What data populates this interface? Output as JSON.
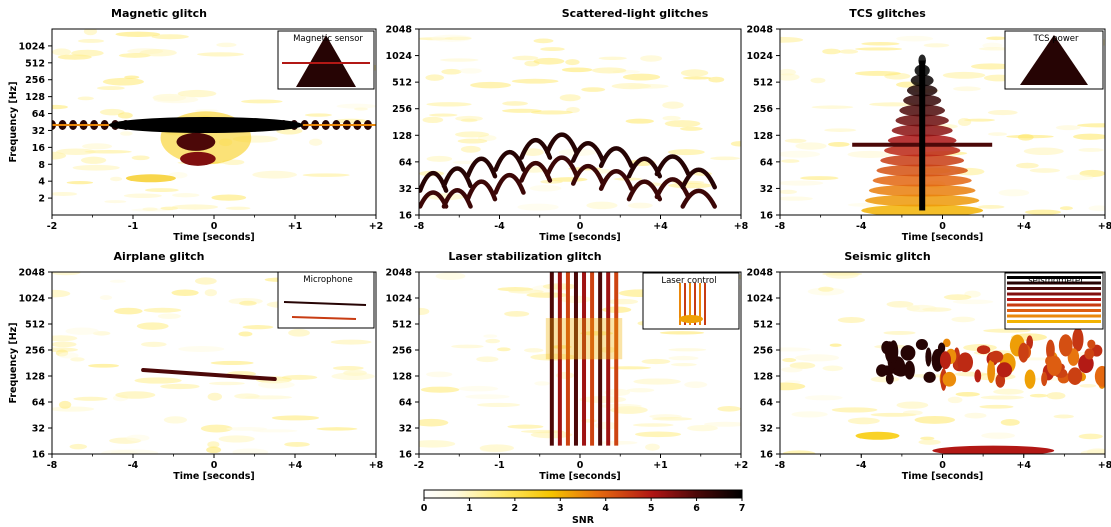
{
  "colorbar": {
    "label": "SNR",
    "ticks": [
      "0",
      "1",
      "2",
      "3",
      "4",
      "5",
      "6",
      "7"
    ],
    "range": [
      0,
      7
    ]
  },
  "chart_data": [
    {
      "type": "heatmap",
      "title": "Magnetic glitch",
      "xlabel": "Time [seconds]",
      "ylabel": "Frequency [Hz]",
      "xlim": [
        -2,
        2
      ],
      "ylim": [
        1,
        2048
      ],
      "yscale": "log",
      "xticks": [
        "-2",
        "-1",
        "0",
        "+1",
        "+2"
      ],
      "yticks": [
        "2",
        "4",
        "8",
        "16",
        "32",
        "64",
        "128",
        "256",
        "512",
        "1024"
      ],
      "inset": "Magnetic sensor",
      "features": [
        {
          "kind": "comb",
          "freq_hz": 40,
          "t_start": -2.0,
          "t_end": 2.0,
          "spacing": 0.13,
          "snr": 6.5
        },
        {
          "kind": "burst",
          "t_center": -0.1,
          "t_width": 0.4,
          "f_low": 8,
          "f_high": 70,
          "snr": 7
        }
      ]
    },
    {
      "type": "heatmap",
      "title": "Scattered-light glitches",
      "xlabel": "Time [seconds]",
      "ylabel": "",
      "xlim": [
        -8,
        8
      ],
      "ylim": [
        16,
        2048
      ],
      "yscale": "log",
      "xticks": [
        "-8",
        "-4",
        "0",
        "+4",
        "+8"
      ],
      "yticks": [
        "16",
        "32",
        "64",
        "128",
        "256",
        "512",
        "1024",
        "2048"
      ],
      "inset": "",
      "features": [
        {
          "kind": "arches",
          "times": [
            -7.3,
            -6.1,
            -4.9,
            -3.5,
            -2.2,
            -0.9,
            0.4,
            1.8,
            3.2,
            4.6,
            5.9
          ],
          "peaks_hz": [
            55,
            62,
            80,
            95,
            130,
            150,
            120,
            105,
            80,
            85,
            60
          ],
          "snr": 6.5
        }
      ]
    },
    {
      "type": "heatmap",
      "title": "TCS glitches",
      "xlabel": "Time [seconds]",
      "ylabel": "",
      "xlim": [
        -8,
        8
      ],
      "ylim": [
        16,
        2048
      ],
      "yscale": "log",
      "xticks": [
        "-8",
        "-4",
        "0",
        "+4",
        "+8"
      ],
      "yticks": [
        "16",
        "32",
        "64",
        "128",
        "256",
        "512",
        "1024",
        "2048"
      ],
      "inset": "TCS power",
      "features": [
        {
          "kind": "tree",
          "t_center": -1.0,
          "f_top": 900,
          "f_base": 18,
          "half_width_s": 3.0,
          "snr": 7
        }
      ]
    },
    {
      "type": "heatmap",
      "title": "Airplane glitch",
      "xlabel": "Time [seconds]",
      "ylabel": "Frequency [Hz]",
      "xlim": [
        -8,
        8
      ],
      "ylim": [
        16,
        2048
      ],
      "yscale": "log",
      "xticks": [
        "-8",
        "-4",
        "0",
        "+4",
        "+8"
      ],
      "yticks": [
        "16",
        "32",
        "64",
        "128",
        "256",
        "512",
        "1024",
        "2048"
      ],
      "inset": "Microphone",
      "features": [
        {
          "kind": "chirp",
          "t_start": -3.5,
          "f_start": 150,
          "t_end": 3.0,
          "f_end": 118,
          "snr": 6
        }
      ]
    },
    {
      "type": "heatmap",
      "title": "Laser stabilization glitch",
      "xlabel": "Time [seconds]",
      "ylabel": "",
      "xlim": [
        -2,
        2
      ],
      "ylim": [
        16,
        2048
      ],
      "yscale": "log",
      "xticks": [
        "-2",
        "-1",
        "0",
        "+1",
        "+2"
      ],
      "yticks": [
        "16",
        "32",
        "64",
        "128",
        "256",
        "512",
        "1024",
        "2048"
      ],
      "inset": "Laser control",
      "features": [
        {
          "kind": "stripes",
          "t_start": -0.35,
          "t_end": 0.45,
          "count": 9,
          "f_low": 20,
          "f_high": 2048,
          "snr": 6
        }
      ]
    },
    {
      "type": "heatmap",
      "title": "Seismic glitch",
      "xlabel": "Time [seconds]",
      "ylabel": "",
      "xlim": [
        -8,
        8
      ],
      "ylim": [
        16,
        2048
      ],
      "yscale": "log",
      "xticks": [
        "-8",
        "-4",
        "0",
        "+4",
        "+8"
      ],
      "yticks": [
        "16",
        "32",
        "64",
        "128",
        "256",
        "512",
        "1024",
        "2048"
      ],
      "inset": "seismometer",
      "features": [
        {
          "kind": "band",
          "t_start": -4.0,
          "t_end": 8.0,
          "f_low": 110,
          "f_high": 350,
          "snr": 6.5
        },
        {
          "kind": "low",
          "t_start": -0.5,
          "t_end": 5.5,
          "f_low": 16,
          "f_high": 30,
          "snr": 5
        }
      ]
    }
  ]
}
